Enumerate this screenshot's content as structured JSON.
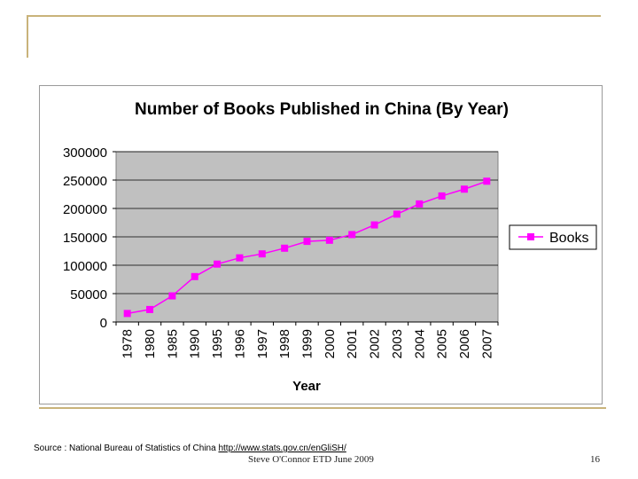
{
  "slide": {
    "source_prefix": "Source : National Bureau of Statistics of China",
    "source_url": "http://www.stats.gov.cn/enGliSH/",
    "footer_text": "Steve O'Connor  ETD June 2009",
    "page_number": "16"
  },
  "colors": {
    "plot_bg": "#c0c0c0",
    "series": "#ff00ff",
    "frame_accent": "#c9b37a"
  },
  "chart_data": {
    "type": "line",
    "title": "Number of Books Published in China (By Year)",
    "xlabel": "Year",
    "ylabel": "",
    "categories": [
      "1978",
      "1980",
      "1985",
      "1990",
      "1995",
      "1996",
      "1997",
      "1998",
      "1999",
      "2000",
      "2001",
      "2002",
      "2003",
      "2004",
      "2005",
      "2006",
      "2007"
    ],
    "series": [
      {
        "name": "Books",
        "values": [
          15000,
          22000,
          46000,
          80000,
          102000,
          113000,
          120000,
          130000,
          142000,
          144000,
          154000,
          171000,
          190000,
          208000,
          222000,
          234000,
          248000
        ]
      }
    ],
    "ylim": [
      0,
      300000
    ],
    "yticks": [
      "300000",
      "250000",
      "200000",
      "150000",
      "100000",
      "50000",
      "0"
    ],
    "ytick_values": [
      300000,
      250000,
      200000,
      150000,
      100000,
      50000,
      0
    ],
    "grid": true,
    "legend_position": "right"
  }
}
